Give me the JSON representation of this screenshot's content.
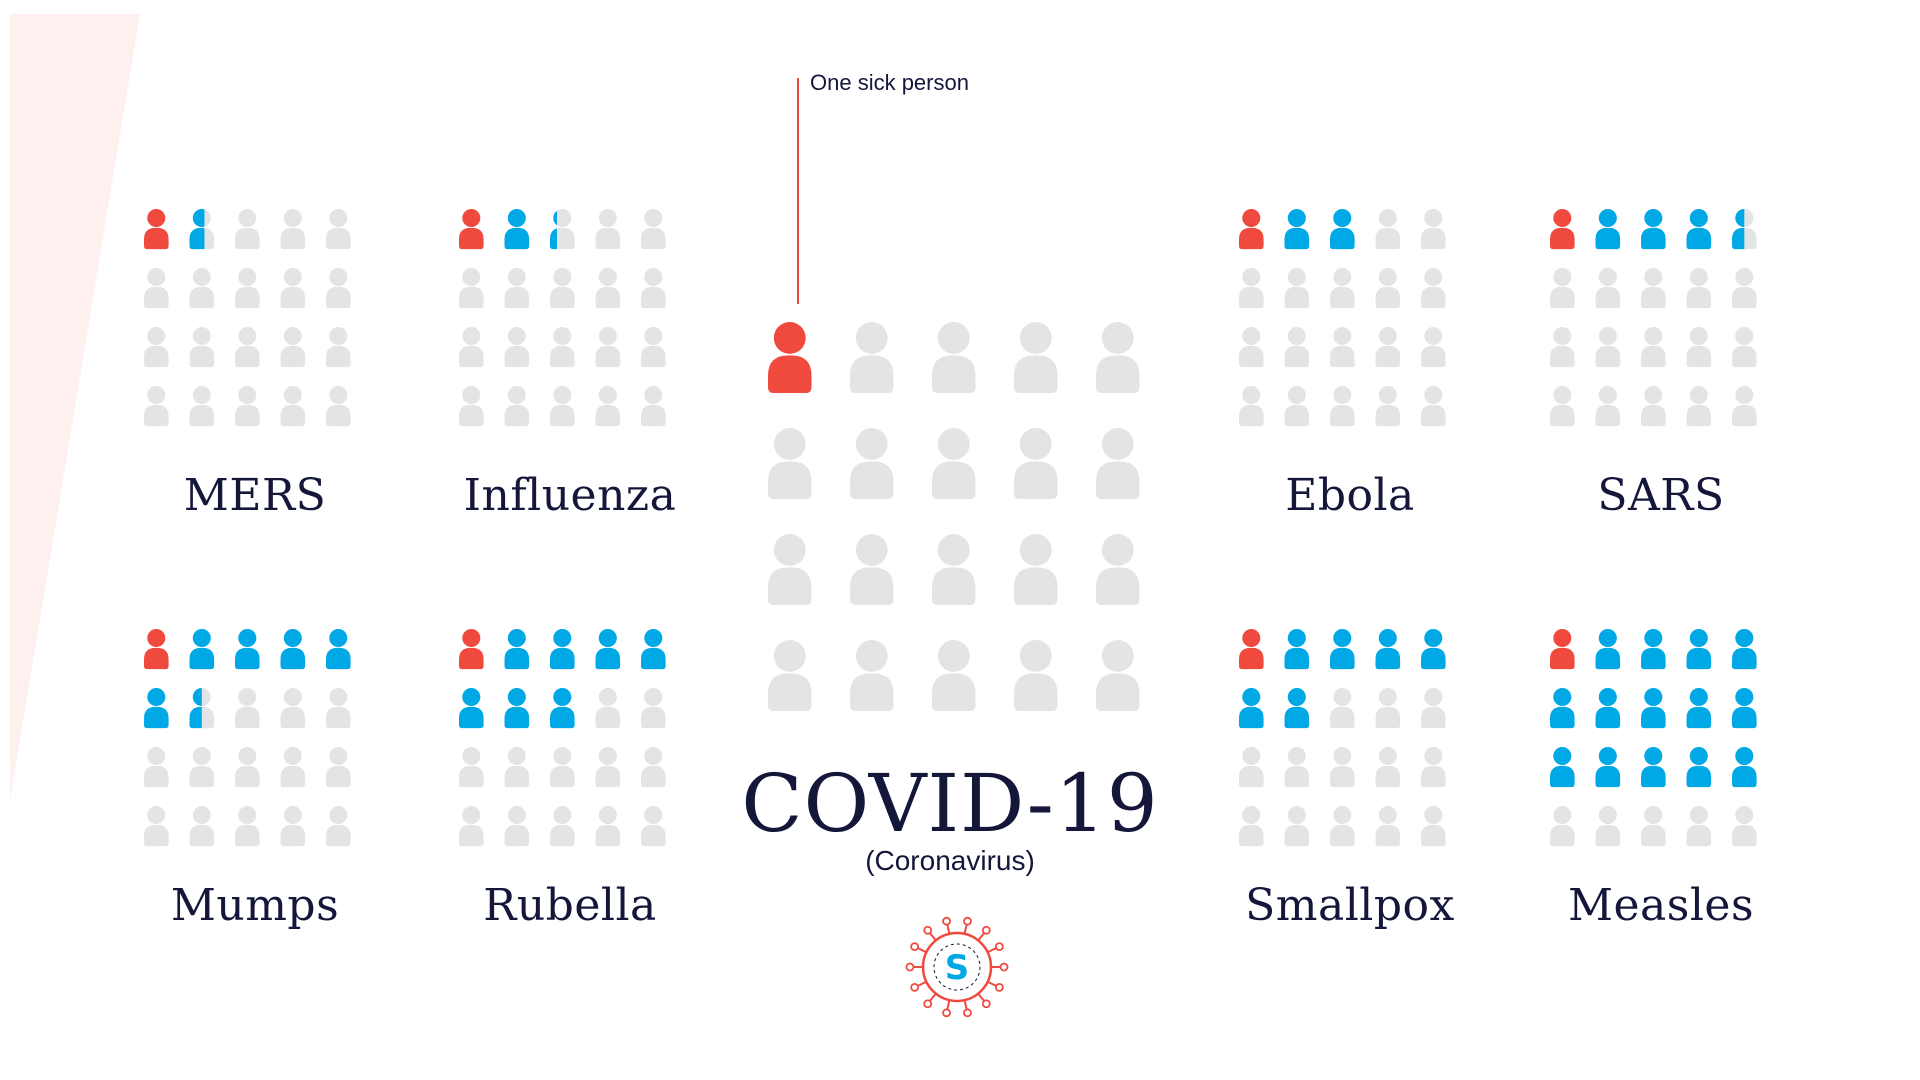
{
  "colors": {
    "sick": "#f04a3f",
    "infected": "#00a9e6",
    "empty": "#e3e4e6",
    "text": "#14163a",
    "wedge": "#fdf0ee"
  },
  "icon": "person-icon",
  "annotation": {
    "text": "One sick person"
  },
  "covid": {
    "title": "COVID-19",
    "subtitle": "(Coronavirus)"
  },
  "logo": {
    "icon": "virus-logo-icon",
    "letter": "S"
  },
  "chart_data": {
    "type": "pictogram",
    "unit": "person",
    "grid": {
      "columns": 5,
      "rows": 4
    },
    "encoding": {
      "sick_persons": 1,
      "value": "number of people infected by one sick person (blue icons, fractional = partial icon)"
    },
    "series": [
      {
        "name": "MERS",
        "value": 0.6
      },
      {
        "name": "Influenza",
        "value": 1.3
      },
      {
        "name": "COVID-19",
        "value": 0
      },
      {
        "name": "Ebola",
        "value": 2
      },
      {
        "name": "SARS",
        "value": 3.5
      },
      {
        "name": "Mumps",
        "value": 5.5
      },
      {
        "name": "Rubella",
        "value": 7
      },
      {
        "name": "Smallpox",
        "value": 6
      },
      {
        "name": "Measles",
        "value": 14
      }
    ]
  }
}
